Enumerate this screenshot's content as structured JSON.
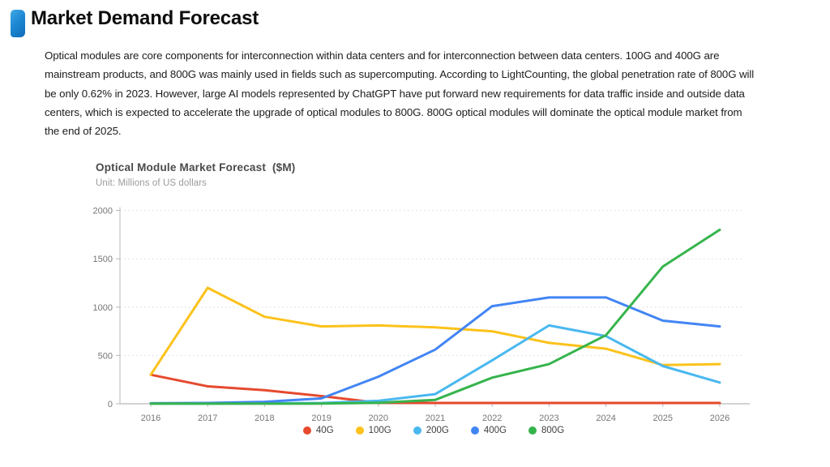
{
  "header": {
    "title": "Market Demand Forecast"
  },
  "intro": {
    "text": "Optical modules are core components for interconnection within data centers and for interconnection between data centers. 100G and 400G are\nmainstream products, and 800G was mainly used in fields such as supercomputing. According to LightCounting, the global penetration rate of 800G will\nbe only 0.62% in 2023. However, large AI models represented by ChatGPT have put forward new requirements for data traffic inside and outside data\ncenters, which is expected to accelerate the upgrade of optical modules to 800G. 800G optical modules will dominate the optical module market from\nthe end of 2025."
  },
  "chart_data": {
    "type": "line",
    "title": "Optical Module Market Forecast  ($M)",
    "unit_label": "Unit: Millions of US dollars",
    "categories": [
      "2016",
      "2017",
      "2018",
      "2019",
      "2020",
      "2021",
      "2022",
      "2023",
      "2024",
      "2025",
      "2026"
    ],
    "series": [
      {
        "name": "40G",
        "color": "#e64a2e",
        "values": [
          300,
          180,
          140,
          80,
          10,
          8,
          8,
          8,
          8,
          8,
          8
        ]
      },
      {
        "name": "100G",
        "color": "#fcc21b",
        "values": [
          300,
          1200,
          900,
          800,
          810,
          790,
          750,
          630,
          570,
          400,
          410
        ]
      },
      {
        "name": "200G",
        "color": "#4ab8ef",
        "values": [
          2,
          2,
          4,
          8,
          30,
          100,
          450,
          810,
          700,
          390,
          220
        ]
      },
      {
        "name": "400G",
        "color": "#4285f4",
        "values": [
          5,
          8,
          20,
          55,
          280,
          560,
          1010,
          1100,
          1100,
          860,
          800
        ]
      },
      {
        "name": "800G",
        "color": "#36b44c",
        "values": [
          1,
          1,
          1,
          2,
          10,
          40,
          270,
          410,
          710,
          1420,
          1800
        ]
      }
    ],
    "ylim": [
      0,
      2000
    ],
    "ytick_step": 500,
    "yticks": [
      0,
      500,
      1000,
      1500,
      2000
    ],
    "grid": "horizontal-dotted",
    "legend_position": "bottom",
    "axis_color": "#b8b8b8",
    "grid_color": "#d9d9d9",
    "tick_label_color": "#767676"
  }
}
